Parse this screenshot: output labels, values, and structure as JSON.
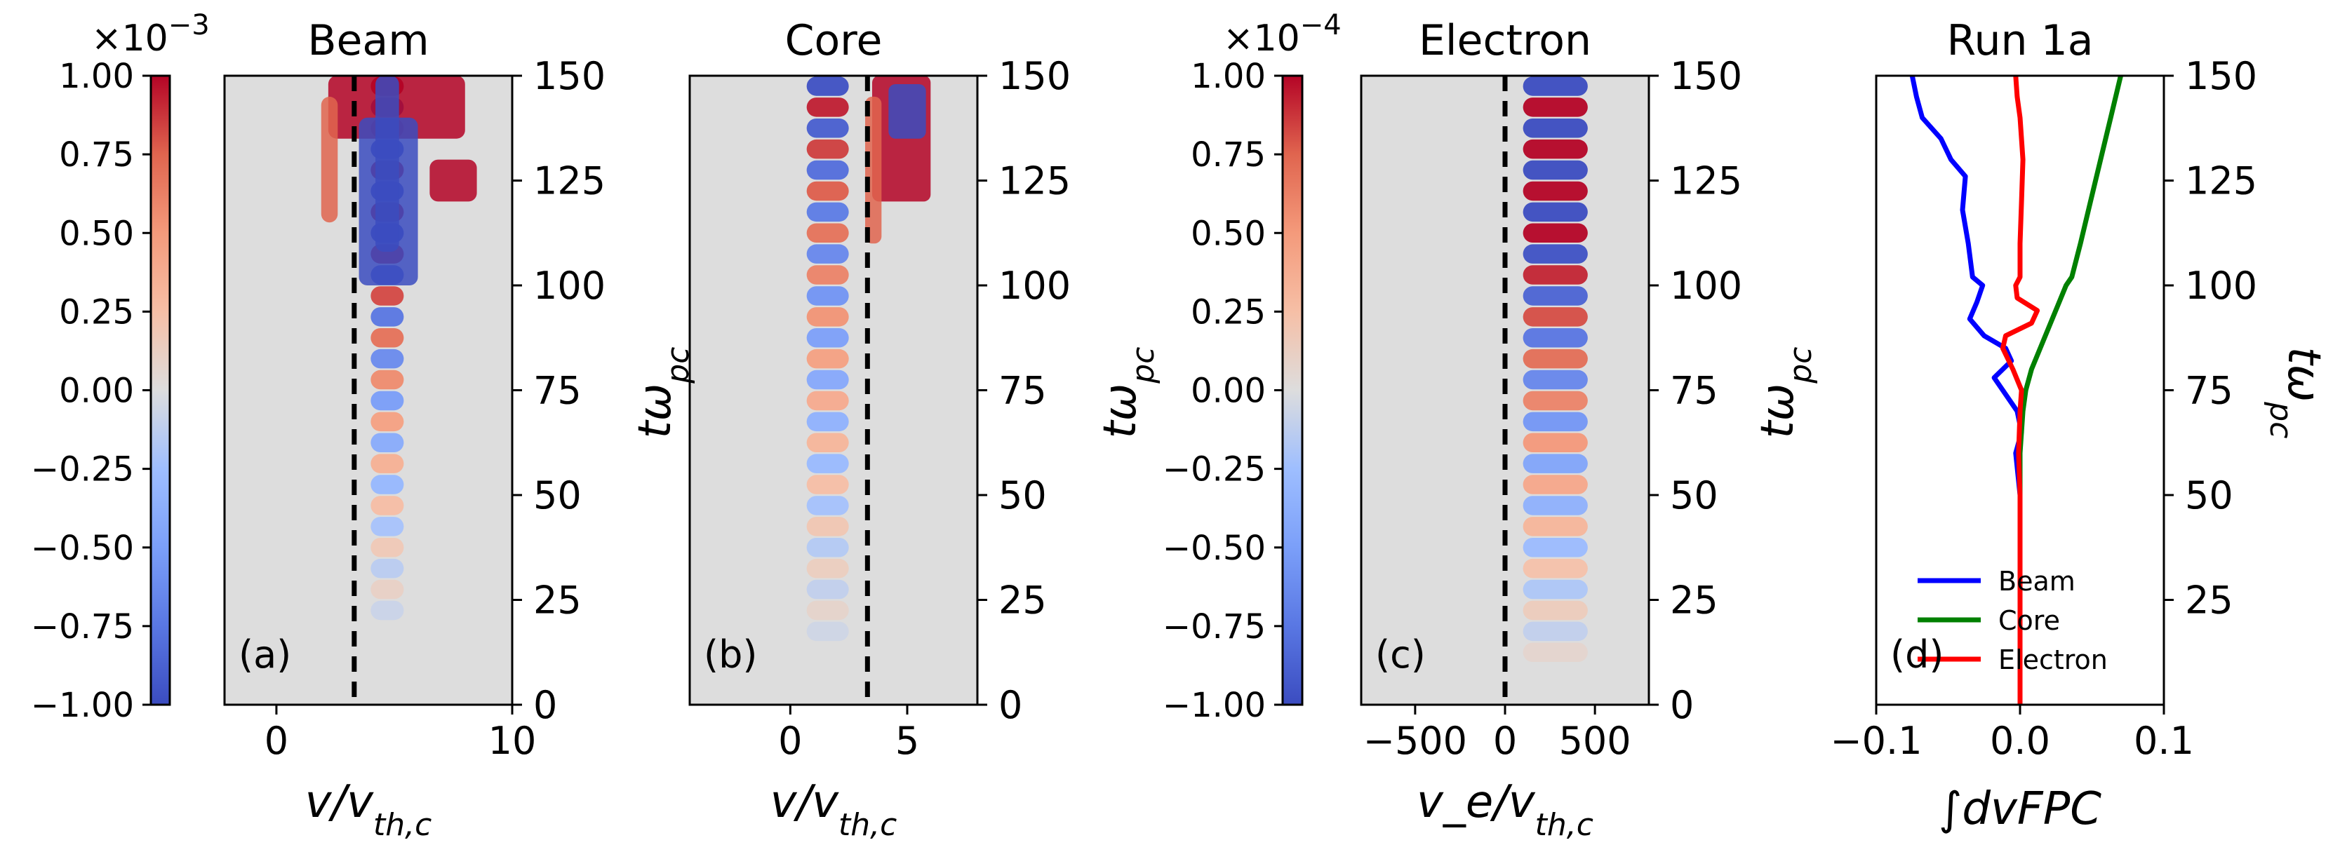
{
  "chart_data": [
    {
      "type": "heatmap",
      "panel_label": "(a)",
      "title": "Beam",
      "xlabel": "v/v_{th,c}",
      "ylabel": "tω_{pc}",
      "xlim": [
        -2.2,
        10
      ],
      "ylim": [
        0,
        150
      ],
      "xticks": [
        "0",
        "10"
      ],
      "xtick_values": [
        0,
        10
      ],
      "yticks": [
        "0",
        "25",
        "50",
        "75",
        "100",
        "125",
        "150"
      ],
      "ytick_values": [
        0,
        25,
        50,
        75,
        100,
        125,
        150
      ],
      "dashed_line_x": 3.3,
      "grid": false,
      "colorbar": {
        "min": -1.0,
        "max": 1.0,
        "exponent_label": "×10",
        "exponent": "−3",
        "ticks": [
          "1.00",
          "0.75",
          "0.50",
          "0.25",
          "0.00",
          "−0.25",
          "−0.50",
          "−0.75",
          "−1.00"
        ],
        "tick_values": [
          1.0,
          0.75,
          0.5,
          0.25,
          0.0,
          -0.25,
          -0.5,
          -0.75,
          -1.0
        ],
        "colormap": "coolwarm"
      }
    },
    {
      "type": "heatmap",
      "panel_label": "(b)",
      "title": "Core",
      "xlabel": "v/v_{th,c}",
      "ylabel": "tω_{pc}",
      "xlim": [
        -4.3,
        8
      ],
      "ylim": [
        0,
        150
      ],
      "xticks": [
        "0",
        "5"
      ],
      "xtick_values": [
        0,
        5
      ],
      "yticks": [
        "0",
        "25",
        "50",
        "75",
        "100",
        "125",
        "150"
      ],
      "ytick_values": [
        0,
        25,
        50,
        75,
        100,
        125,
        150
      ],
      "dashed_line_x": 3.3,
      "grid": false
    },
    {
      "type": "heatmap",
      "panel_label": "(c)",
      "title": "Electron",
      "xlabel": "v_e/v_{th,c}",
      "ylabel": "tω_{pc}",
      "xlim": [
        -800,
        800
      ],
      "ylim": [
        0,
        150
      ],
      "xticks": [
        "−500",
        "0",
        "500"
      ],
      "xtick_values": [
        -500,
        0,
        500
      ],
      "yticks": [
        "0",
        "25",
        "50",
        "75",
        "100",
        "125",
        "150"
      ],
      "ytick_values": [
        0,
        25,
        50,
        75,
        100,
        125,
        150
      ],
      "dashed_line_x": 0,
      "grid": false,
      "colorbar": {
        "min": -1.0,
        "max": 1.0,
        "exponent_label": "×10",
        "exponent": "−4",
        "ticks": [
          "1.00",
          "0.75",
          "0.50",
          "0.25",
          "0.00",
          "−0.25",
          "−0.50",
          "−0.75",
          "−1.00"
        ],
        "tick_values": [
          1.0,
          0.75,
          0.5,
          0.25,
          0.0,
          -0.25,
          -0.5,
          -0.75,
          -1.0
        ],
        "colormap": "coolwarm"
      }
    },
    {
      "type": "line",
      "panel_label": "(d)",
      "title": "Run 1a",
      "xlabel": "∫dvFPC",
      "ylabel": "tω_{pc}",
      "xlim": [
        -0.1,
        0.1
      ],
      "ylim": [
        0,
        150
      ],
      "xticks": [
        "−0.1",
        "0.0",
        "0.1"
      ],
      "xtick_values": [
        -0.1,
        0.0,
        0.1
      ],
      "yticks": [
        "25",
        "50",
        "75",
        "100",
        "125",
        "150"
      ],
      "ytick_values": [
        25,
        50,
        75,
        100,
        125,
        150
      ],
      "legend": "lower-left",
      "grid": false,
      "series": [
        {
          "name": "Beam",
          "color": "#0000ff",
          "t": [
            0,
            25,
            50,
            60,
            65,
            70,
            75,
            78,
            82,
            85,
            88,
            92,
            96,
            100,
            102,
            110,
            118,
            126,
            130,
            135,
            140,
            145,
            150
          ],
          "values": [
            0.0,
            0.0,
            0.0,
            -0.003,
            0.001,
            -0.002,
            -0.012,
            -0.018,
            -0.006,
            -0.01,
            -0.025,
            -0.035,
            -0.03,
            -0.026,
            -0.033,
            -0.036,
            -0.04,
            -0.038,
            -0.048,
            -0.055,
            -0.068,
            -0.072,
            -0.075
          ]
        },
        {
          "name": "Core",
          "color": "#008000",
          "t": [
            0,
            25,
            50,
            60,
            70,
            75,
            80,
            85,
            90,
            95,
            100,
            102,
            110,
            120,
            130,
            140,
            150
          ],
          "values": [
            0.0,
            0.0,
            0.0,
            0.0,
            0.002,
            0.004,
            0.008,
            0.014,
            0.02,
            0.026,
            0.032,
            0.036,
            0.042,
            0.049,
            0.056,
            0.063,
            0.07
          ]
        },
        {
          "name": "Electron",
          "color": "#ff0000",
          "t": [
            0,
            25,
            50,
            60,
            70,
            75,
            80,
            85,
            88,
            91,
            94,
            97,
            100,
            102,
            110,
            120,
            130,
            140,
            145,
            150
          ],
          "values": [
            0.0,
            0.0,
            0.0,
            -0.001,
            0.0,
            0.001,
            -0.005,
            -0.012,
            -0.01,
            0.008,
            0.012,
            -0.002,
            -0.003,
            0.0,
            0.0,
            0.001,
            0.002,
            0.0,
            -0.002,
            -0.003
          ]
        }
      ]
    }
  ]
}
